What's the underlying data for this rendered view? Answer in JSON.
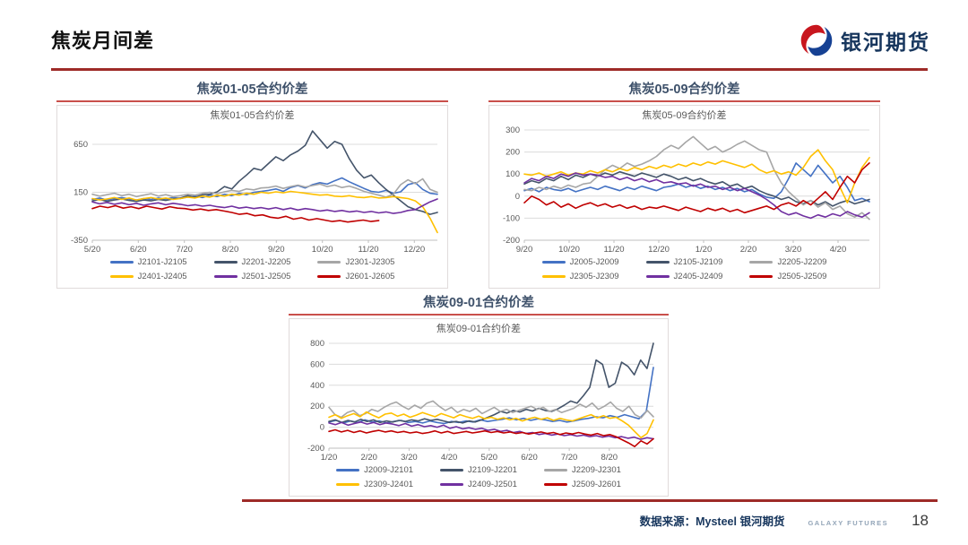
{
  "page": {
    "title": "焦炭月间差",
    "logo_text": "银河期货",
    "footer": {
      "source": "数据来源：Mysteel 银河期货",
      "brand": "GALAXY FUTURES",
      "page_number": "18"
    }
  },
  "colors": {
    "accent_red": "#9E2B28",
    "header_red": "#C9504B",
    "header_text": "#3F526B",
    "axis_text": "#595959",
    "grid": "#DCDCDC"
  },
  "chart_data": [
    {
      "type": "line",
      "header": "焦炭01-05合约价差",
      "title": "焦炭01-05合约价差",
      "ylim": [
        -350,
        800
      ],
      "yticks": [
        650,
        150,
        -350
      ],
      "xticklabels": [
        "5/20",
        "6/20",
        "7/20",
        "8/20",
        "9/20",
        "10/20",
        "11/20",
        "12/20"
      ],
      "xspan": 7.5,
      "grid": true,
      "legend_position": "bottom",
      "series": [
        {
          "name": "J2101-J2105",
          "color": "#4472C4",
          "values": [
            75,
            90,
            70,
            85,
            95,
            80,
            70,
            85,
            75,
            90,
            80,
            95,
            85,
            100,
            110,
            95,
            120,
            105,
            130,
            115,
            140,
            125,
            150,
            160,
            170,
            185,
            160,
            200,
            220,
            195,
            230,
            250,
            235,
            270,
            300,
            260,
            225,
            190,
            160,
            150,
            170,
            140,
            155,
            230,
            250,
            180,
            140,
            130
          ]
        },
        {
          "name": "J2201-J2205",
          "color": "#44546A",
          "values": [
            60,
            75,
            55,
            70,
            80,
            65,
            55,
            70,
            60,
            75,
            65,
            80,
            90,
            115,
            100,
            125,
            130,
            155,
            210,
            185,
            265,
            330,
            400,
            380,
            450,
            520,
            480,
            540,
            580,
            640,
            790,
            700,
            610,
            680,
            650,
            500,
            380,
            300,
            330,
            250,
            180,
            120,
            60,
            0,
            -30,
            -50,
            -80,
            -60
          ]
        },
        {
          "name": "J2301-J2305",
          "color": "#A6A6A6",
          "values": [
            130,
            110,
            125,
            140,
            115,
            130,
            105,
            120,
            135,
            110,
            125,
            105,
            115,
            130,
            120,
            140,
            150,
            135,
            155,
            170,
            160,
            185,
            175,
            195,
            200,
            215,
            190,
            210,
            225,
            205,
            220,
            235,
            210,
            225,
            200,
            215,
            190,
            160,
            140,
            120,
            100,
            130,
            230,
            280,
            240,
            290,
            180,
            150
          ]
        },
        {
          "name": "J2401-J2405",
          "color": "#FFC000",
          "values": [
            85,
            70,
            80,
            95,
            75,
            90,
            70,
            85,
            95,
            80,
            90,
            75,
            85,
            100,
            90,
            110,
            100,
            120,
            110,
            130,
            120,
            140,
            130,
            150,
            140,
            155,
            145,
            160,
            150,
            140,
            130,
            120,
            125,
            110,
            105,
            115,
            100,
            95,
            105,
            90,
            95,
            105,
            95,
            85,
            60,
            0,
            -120,
            -270
          ]
        },
        {
          "name": "J2501-J2505",
          "color": "#7030A0",
          "values": [
            50,
            30,
            45,
            25,
            40,
            20,
            35,
            15,
            30,
            40,
            20,
            35,
            25,
            10,
            20,
            5,
            15,
            0,
            -10,
            5,
            -15,
            -5,
            -20,
            -10,
            -25,
            -10,
            -30,
            -15,
            -35,
            -20,
            -30,
            -45,
            -35,
            -50,
            -40,
            -55,
            -45,
            -60,
            -50,
            -65,
            -55,
            -70,
            -60,
            -40,
            -30,
            10,
            50,
            80
          ]
        },
        {
          "name": "J2601-J2605",
          "color": "#C00000",
          "end_frac": 0.83,
          "values": [
            -20,
            5,
            -10,
            10,
            -15,
            0,
            -20,
            5,
            -10,
            -25,
            0,
            -15,
            -20,
            -35,
            -25,
            -40,
            -30,
            -45,
            -60,
            -80,
            -70,
            -95,
            -85,
            -110,
            -120,
            -100,
            -130,
            -115,
            -140,
            -125,
            -140,
            -155,
            -145,
            -160,
            -150,
            -140,
            -155,
            -145
          ]
        }
      ]
    },
    {
      "type": "line",
      "header": "焦炭05-09合约价差",
      "title": "焦炭05-09合约价差",
      "ylim": [
        -200,
        300
      ],
      "yticks": [
        300,
        200,
        100,
        0,
        -100,
        -200
      ],
      "xticklabels": [
        "9/20",
        "10/20",
        "11/20",
        "12/20",
        "1/20",
        "2/20",
        "3/20",
        "4/20"
      ],
      "xspan": 7.7,
      "grid": true,
      "legend_position": "bottom",
      "series": [
        {
          "name": "J2005-J2009",
          "color": "#4472C4",
          "values": [
            25,
            35,
            20,
            40,
            30,
            25,
            35,
            20,
            30,
            40,
            30,
            45,
            35,
            25,
            40,
            30,
            45,
            35,
            25,
            40,
            45,
            55,
            40,
            50,
            35,
            45,
            30,
            40,
            25,
            35,
            20,
            30,
            10,
            -5,
            -10,
            20,
            80,
            150,
            120,
            90,
            140,
            100,
            60,
            90,
            40,
            -20,
            -10,
            -25
          ]
        },
        {
          "name": "J2105-J2109",
          "color": "#44546A",
          "values": [
            55,
            70,
            60,
            80,
            70,
            90,
            75,
            95,
            85,
            100,
            90,
            105,
            95,
            110,
            100,
            90,
            105,
            95,
            85,
            100,
            90,
            75,
            85,
            70,
            80,
            65,
            55,
            65,
            45,
            55,
            35,
            45,
            25,
            10,
            0,
            -15,
            -5,
            -25,
            -35,
            -20,
            -40,
            -25,
            -45,
            -30,
            -20,
            -35,
            -25,
            -15
          ]
        },
        {
          "name": "J2205-J2209",
          "color": "#A6A6A6",
          "values": [
            30,
            25,
            40,
            30,
            45,
            35,
            50,
            40,
            55,
            60,
            90,
            120,
            140,
            125,
            150,
            135,
            145,
            160,
            180,
            210,
            230,
            215,
            245,
            270,
            240,
            210,
            225,
            200,
            215,
            235,
            250,
            230,
            210,
            200,
            120,
            60,
            20,
            -10,
            -40,
            -20,
            -50,
            -30,
            -60,
            -45,
            -80,
            -95,
            -75,
            -105
          ]
        },
        {
          "name": "J2305-J2309",
          "color": "#FFC000",
          "values": [
            100,
            95,
            105,
            90,
            100,
            110,
            95,
            105,
            100,
            115,
            105,
            120,
            110,
            125,
            115,
            130,
            120,
            135,
            125,
            140,
            130,
            145,
            135,
            150,
            140,
            155,
            145,
            160,
            150,
            140,
            130,
            145,
            120,
            105,
            115,
            100,
            110,
            95,
            130,
            180,
            210,
            160,
            120,
            40,
            -30,
            60,
            130,
            175
          ]
        },
        {
          "name": "J2405-J2409",
          "color": "#7030A0",
          "values": [
            60,
            80,
            70,
            90,
            80,
            100,
            90,
            105,
            95,
            100,
            95,
            85,
            90,
            75,
            85,
            70,
            80,
            65,
            75,
            60,
            65,
            55,
            60,
            45,
            55,
            40,
            45,
            30,
            40,
            25,
            35,
            20,
            5,
            -15,
            -40,
            -70,
            -85,
            -75,
            -90,
            -100,
            -85,
            -95,
            -80,
            -90,
            -70,
            -85,
            -95,
            -75
          ]
        },
        {
          "name": "J2505-J2509",
          "color": "#C00000",
          "values": [
            -30,
            0,
            -15,
            -40,
            -25,
            -50,
            -35,
            -55,
            -40,
            -30,
            -45,
            -35,
            -50,
            -40,
            -55,
            -45,
            -60,
            -50,
            -55,
            -45,
            -55,
            -65,
            -50,
            -60,
            -70,
            -55,
            -65,
            -55,
            -70,
            -60,
            -75,
            -65,
            -55,
            -45,
            -60,
            -40,
            -30,
            -45,
            -20,
            -40,
            -10,
            20,
            -15,
            40,
            90,
            60,
            120,
            150
          ]
        }
      ]
    },
    {
      "type": "line",
      "header": "焦炭09-01合约价差",
      "title": "焦炭09-01合约价差",
      "ylim": [
        -200,
        800
      ],
      "yticks": [
        800,
        600,
        400,
        200,
        0,
        -200
      ],
      "xticklabels": [
        "1/20",
        "2/20",
        "3/20",
        "4/20",
        "5/20",
        "6/20",
        "7/20",
        "8/20"
      ],
      "xspan": 8.1,
      "grid": true,
      "legend_position": "bottom",
      "series": [
        {
          "name": "J2009-J2101",
          "color": "#4472C4",
          "values": [
            50,
            65,
            40,
            60,
            45,
            70,
            50,
            60,
            40,
            55,
            65,
            45,
            55,
            40,
            60,
            45,
            35,
            55,
            45,
            60,
            50,
            70,
            55,
            65,
            75,
            90,
            70,
            85,
            65,
            80,
            70,
            55,
            65,
            50,
            60,
            75,
            85,
            100,
            90,
            110,
            95,
            120,
            100,
            80,
            150,
            570
          ]
        },
        {
          "name": "J2109-J2201",
          "color": "#44546A",
          "values": [
            55,
            70,
            45,
            65,
            50,
            75,
            55,
            70,
            45,
            60,
            50,
            65,
            55,
            70,
            60,
            80,
            65,
            75,
            60,
            45,
            55,
            40,
            60,
            50,
            70,
            95,
            120,
            150,
            135,
            160,
            145,
            170,
            155,
            180,
            160,
            150,
            175,
            210,
            250,
            230,
            300,
            380,
            640,
            600,
            380,
            420,
            620,
            580,
            500,
            640,
            560,
            800
          ]
        },
        {
          "name": "J2209-J2301",
          "color": "#A6A6A6",
          "values": [
            190,
            120,
            95,
            140,
            160,
            110,
            130,
            170,
            150,
            190,
            220,
            240,
            200,
            170,
            210,
            180,
            230,
            250,
            200,
            160,
            190,
            140,
            170,
            150,
            180,
            130,
            160,
            190,
            150,
            170,
            140,
            160,
            180,
            200,
            170,
            190,
            150,
            170,
            140,
            160,
            180,
            220,
            190,
            230,
            170,
            200,
            240,
            180,
            150,
            200,
            120,
            90,
            160,
            100
          ]
        },
        {
          "name": "J2309-J2401",
          "color": "#FFC000",
          "values": [
            95,
            120,
            85,
            110,
            130,
            100,
            145,
            115,
            90,
            125,
            135,
            105,
            125,
            95,
            115,
            140,
            120,
            100,
            130,
            110,
            90,
            120,
            100,
            85,
            105,
            80,
            95,
            75,
            90,
            70,
            85,
            60,
            80,
            95,
            75,
            90,
            65,
            85,
            70,
            60,
            80,
            100,
            120,
            90,
            110,
            85,
            95,
            60,
            20,
            -40,
            -100,
            -60,
            70
          ]
        },
        {
          "name": "J2409-J2501",
          "color": "#7030A0",
          "values": [
            40,
            25,
            45,
            20,
            35,
            50,
            30,
            45,
            25,
            40,
            30,
            15,
            35,
            10,
            25,
            5,
            15,
            0,
            20,
            -10,
            5,
            -15,
            -5,
            -20,
            -10,
            -30,
            -20,
            -40,
            -30,
            -50,
            -40,
            -60,
            -50,
            -70,
            -60,
            -75,
            -65,
            -80,
            -70,
            -85,
            -75,
            -90,
            -80,
            -95,
            -85,
            -100,
            -90,
            -105,
            -95,
            -115,
            -100,
            -110
          ]
        },
        {
          "name": "J2509-J2601",
          "color": "#C00000",
          "values": [
            -40,
            -25,
            -45,
            -30,
            -50,
            -35,
            -55,
            -40,
            -30,
            -45,
            -35,
            -50,
            -40,
            -55,
            -45,
            -60,
            -50,
            -35,
            -55,
            -40,
            -60,
            -50,
            -40,
            -55,
            -45,
            -35,
            -50,
            -40,
            -55,
            -45,
            -60,
            -50,
            -65,
            -55,
            -45,
            -60,
            -50,
            -70,
            -55,
            -65,
            -50,
            -65,
            -75,
            -60,
            -80,
            -70,
            -90,
            -120,
            -150,
            -185,
            -130,
            -160,
            -110
          ]
        }
      ]
    }
  ]
}
